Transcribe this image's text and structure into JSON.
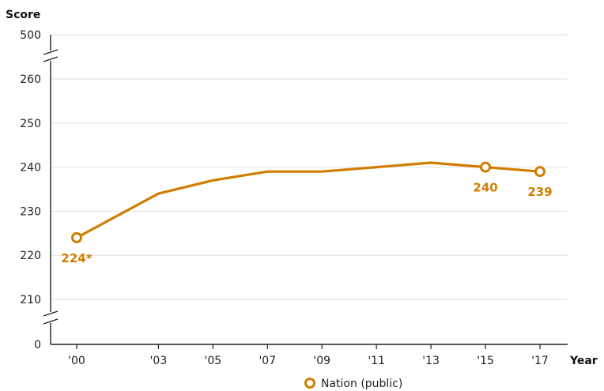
{
  "chart_data": {
    "type": "line",
    "ylabel": "Score",
    "xlabel": "Year",
    "x_tick_labels": [
      "'00",
      "'03",
      "'05",
      "'07",
      "'09",
      "'11",
      "'13",
      "'15",
      "'17"
    ],
    "x_years": [
      2000,
      2003,
      2005,
      2007,
      2009,
      2011,
      2013,
      2015,
      2017
    ],
    "y_ticks": [
      0,
      210,
      220,
      230,
      240,
      250,
      260,
      500
    ],
    "y_range_shown": [
      205,
      265
    ],
    "y_axis_breaks": true,
    "grid": true,
    "legend_position": "bottom-center",
    "series": [
      {
        "name": "Nation (public)",
        "color": "#d17e00",
        "values": [
          224,
          234,
          237,
          239,
          239,
          240,
          241,
          240,
          239
        ],
        "markers_at": [
          0,
          7,
          8
        ],
        "data_labels": [
          {
            "index": 0,
            "text": "224*"
          },
          {
            "index": 7,
            "text": "240"
          },
          {
            "index": 8,
            "text": "239"
          }
        ]
      }
    ]
  }
}
